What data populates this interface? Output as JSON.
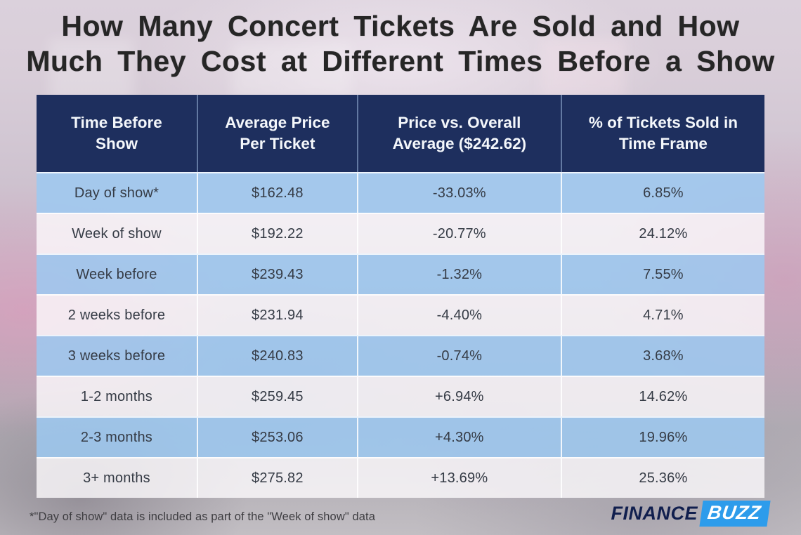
{
  "title": {
    "line1": "How Many Concert Tickets Are Sold and How",
    "line2": "Much They Cost at Different Times Before a Show"
  },
  "table": {
    "headers": [
      "Time Before Show",
      "Average Price Per Ticket",
      "Price vs. Overall Average ($242.62)",
      "% of Tickets Sold in Time Frame"
    ],
    "rows": [
      {
        "time": "Day of show*",
        "avg_price": "$162.48",
        "vs_overall": "-33.03%",
        "pct_sold": "6.85%"
      },
      {
        "time": "Week of show",
        "avg_price": "$192.22",
        "vs_overall": "-20.77%",
        "pct_sold": "24.12%"
      },
      {
        "time": "Week before",
        "avg_price": "$239.43",
        "vs_overall": "-1.32%",
        "pct_sold": "7.55%"
      },
      {
        "time": "2 weeks before",
        "avg_price": "$231.94",
        "vs_overall": "-4.40%",
        "pct_sold": "4.71%"
      },
      {
        "time": "3 weeks before",
        "avg_price": "$240.83",
        "vs_overall": "-0.74%",
        "pct_sold": "3.68%"
      },
      {
        "time": "1-2 months",
        "avg_price": "$259.45",
        "vs_overall": "+6.94%",
        "pct_sold": "14.62%"
      },
      {
        "time": "2-3 months",
        "avg_price": "$253.06",
        "vs_overall": "+4.30%",
        "pct_sold": "19.96%"
      },
      {
        "time": "3+ months",
        "avg_price": "$275.82",
        "vs_overall": "+13.69%",
        "pct_sold": "25.36%"
      }
    ]
  },
  "footnote": "*\"Day of show\" data is included as part of the \"Week of show\" data",
  "logo": {
    "finance": "FINANCE",
    "buzz": "BUZZ"
  },
  "colors": {
    "header_bg": "#1e2f5e",
    "row_blue": "#9cc9f2",
    "row_white": "#fcfafc",
    "logo_navy": "#111f4e",
    "logo_blue": "#2d9ceb",
    "title_text": "#262626"
  },
  "chart_data": {
    "type": "table",
    "title": "How Many Concert Tickets Are Sold and How Much They Cost at Different Times Before a Show",
    "columns": [
      "Time Before Show",
      "Average Price Per Ticket",
      "Price vs. Overall Average ($242.62)",
      "% of Tickets Sold in Time Frame"
    ],
    "categories": [
      "Day of show*",
      "Week of show",
      "Week before",
      "2 weeks before",
      "3 weeks before",
      "1-2 months",
      "2-3 months",
      "3+ months"
    ],
    "series": [
      {
        "name": "Average Price Per Ticket ($)",
        "values": [
          162.48,
          192.22,
          239.43,
          231.94,
          240.83,
          259.45,
          253.06,
          275.82
        ]
      },
      {
        "name": "Price vs. Overall Average (%)",
        "values": [
          -33.03,
          -20.77,
          -1.32,
          -4.4,
          -0.74,
          6.94,
          4.3,
          13.69
        ]
      },
      {
        "name": "% of Tickets Sold in Time Frame",
        "values": [
          6.85,
          24.12,
          7.55,
          4.71,
          3.68,
          14.62,
          19.96,
          25.36
        ]
      }
    ],
    "overall_average_price": 242.62,
    "footnote": "*\"Day of show\" data is included as part of the \"Week of show\" data"
  }
}
